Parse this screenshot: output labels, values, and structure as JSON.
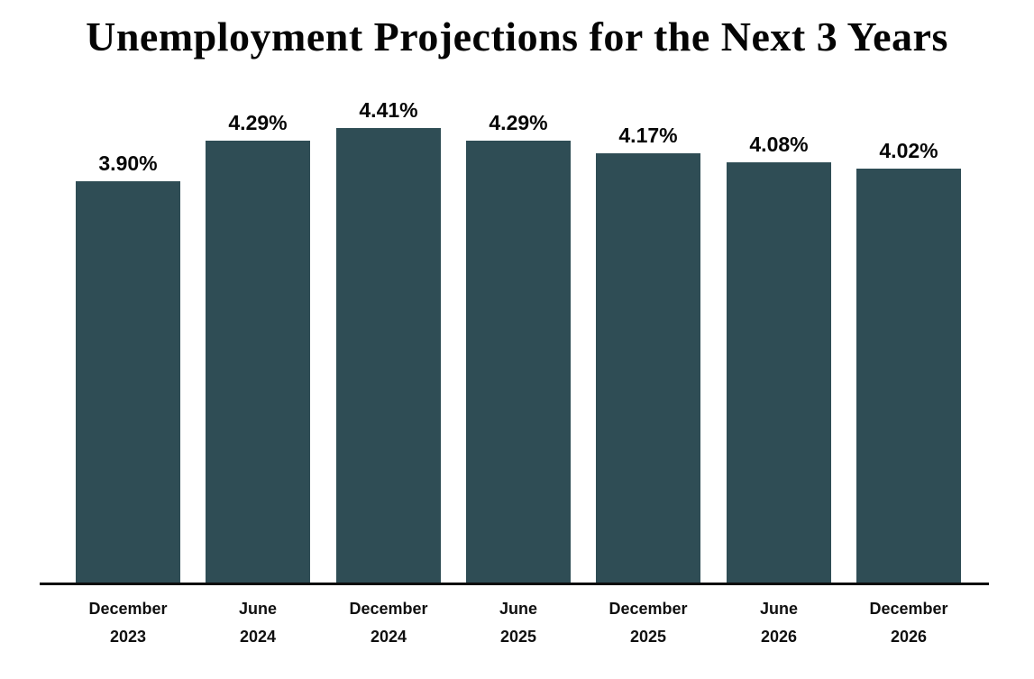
{
  "chart_data": {
    "type": "bar",
    "title": "Unemployment Projections for the Next 3 Years",
    "categories": [
      "December 2023",
      "June 2024",
      "December 2024",
      "June 2025",
      "December 2025",
      "June 2026",
      "December 2026"
    ],
    "values": [
      3.9,
      4.29,
      4.41,
      4.29,
      4.17,
      4.08,
      4.02
    ],
    "value_labels": [
      "3.90%",
      "4.29%",
      "4.41%",
      "4.29%",
      "4.17%",
      "4.08%",
      "4.02%"
    ],
    "xlabel": "",
    "ylabel": "",
    "ylim": [
      0,
      4.41
    ],
    "grid": false,
    "legend": false,
    "bar_color": "#2F4D55",
    "axis_color": "#0d0d0d",
    "label_color": "#060606",
    "background_color": "#ffffff"
  }
}
